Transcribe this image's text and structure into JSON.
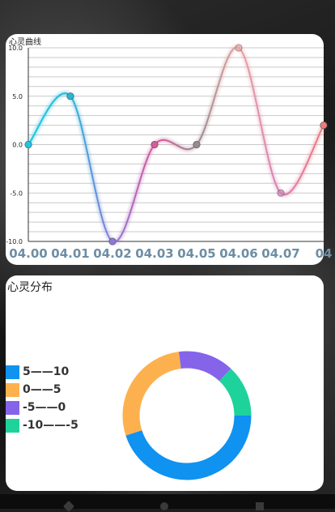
{
  "line_chart": {
    "title": "心灵曲线"
  },
  "pie_chart": {
    "title": "心灵分布"
  },
  "chart_data": [
    {
      "type": "line",
      "title": "心灵曲线",
      "x": [
        "04.00",
        "04.01",
        "04.02",
        "04.03",
        "04.05",
        "04.06",
        "04.07",
        "04"
      ],
      "y_ticks": [
        "10.0",
        "5.0",
        "0.0",
        "-5.0",
        "-10.0"
      ],
      "ylim": [
        -10,
        10
      ],
      "grid": true,
      "series": [
        {
          "values": [
            0,
            5,
            -10,
            0,
            0,
            10,
            -5,
            2
          ]
        }
      ],
      "colors": [
        "#1ec6e3",
        "#29b6d6",
        "#8c7ad9",
        "#d85a9a",
        "#9a8a90",
        "#e8a3a0",
        "#d57fb6",
        "#f07a7a"
      ]
    },
    {
      "type": "pie",
      "title": "心灵分布",
      "legend": "left",
      "categories": [
        "5——10",
        "0——5",
        "-5——0",
        "-10——-5"
      ],
      "values": [
        45,
        28,
        14,
        13
      ],
      "colors": [
        "#0f92f0",
        "#fdb14e",
        "#8564ea",
        "#1ed39b"
      ]
    }
  ]
}
